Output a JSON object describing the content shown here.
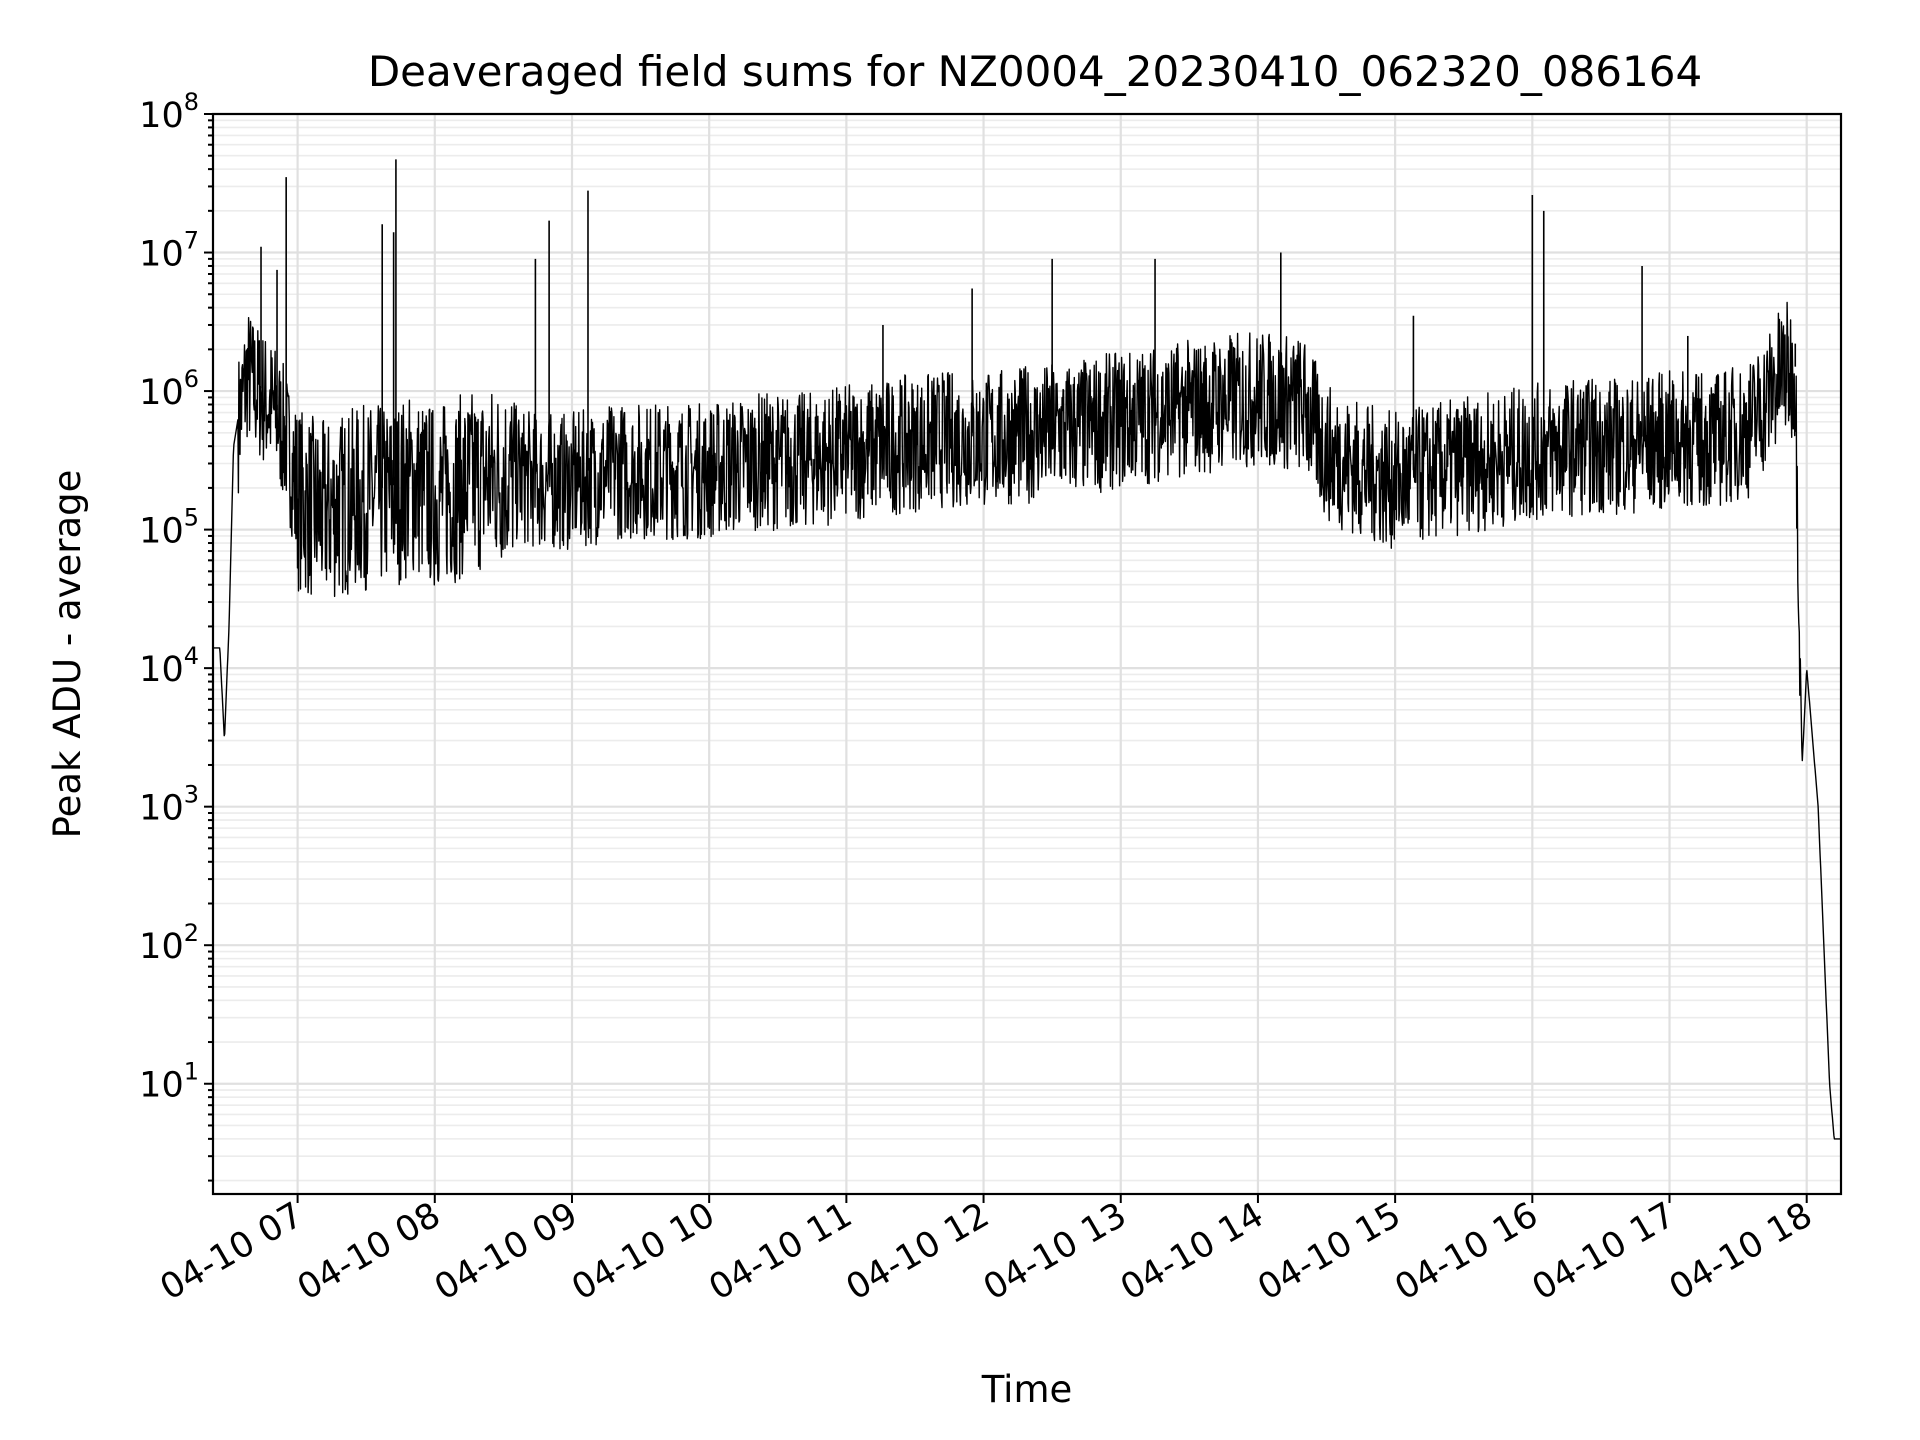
{
  "chart_data": {
    "type": "line",
    "title": "Deaveraged field sums for NZ0004_20230410_062320_086164",
    "xlabel": "Time",
    "ylabel": "Peak ADU - average",
    "yscale": "log",
    "ylim": [
      1.6,
      100000000
    ],
    "xlim": [
      "04-10 06:23",
      "04-10 18:15"
    ],
    "grid": true,
    "line_color": "#000000",
    "x_ticks": [
      "04-10 07",
      "04-10 08",
      "04-10 09",
      "04-10 10",
      "04-10 11",
      "04-10 12",
      "04-10 13",
      "04-10 14",
      "04-10 15",
      "04-10 16",
      "04-10 17",
      "04-10 18"
    ],
    "y_ticks": [
      {
        "base": "10",
        "exp": "1"
      },
      {
        "base": "10",
        "exp": "2"
      },
      {
        "base": "10",
        "exp": "3"
      },
      {
        "base": "10",
        "exp": "4"
      },
      {
        "base": "10",
        "exp": "5"
      },
      {
        "base": "10",
        "exp": "6"
      },
      {
        "base": "10",
        "exp": "7"
      },
      {
        "base": "10",
        "exp": "8"
      }
    ],
    "series": [
      {
        "x": [
          "04-10 06:23",
          "04-10 06:26",
          "04-10 06:28",
          "04-10 06:30",
          "04-10 06:32",
          "04-10 06:35",
          "04-10 06:38",
          "04-10 06:41",
          "04-10 06:45",
          "04-10 06:50",
          "04-10 06:55",
          "04-10 07:00",
          "04-10 07:10",
          "04-10 07:20",
          "04-10 07:30",
          "04-10 07:40",
          "04-10 07:50",
          "04-10 08:00",
          "04-10 08:15",
          "04-10 08:30",
          "04-10 08:45",
          "04-10 09:00",
          "04-10 09:20",
          "04-10 09:40",
          "04-10 10:00",
          "04-10 10:20",
          "04-10 10:40",
          "04-10 11:00",
          "04-10 11:20",
          "04-10 11:40",
          "04-10 12:00",
          "04-10 12:20",
          "04-10 12:40",
          "04-10 13:00",
          "04-10 13:20",
          "04-10 13:40",
          "04-10 14:00",
          "04-10 14:20",
          "04-10 14:30",
          "04-10 14:45",
          "04-10 15:00",
          "04-10 15:20",
          "04-10 15:40",
          "04-10 16:00",
          "04-10 16:20",
          "04-10 16:40",
          "04-10 17:00",
          "04-10 17:20",
          "04-10 17:35",
          "04-10 17:50",
          "04-10 17:55",
          "04-10 17:58",
          "04-10 18:00",
          "04-10 18:05",
          "04-10 18:10",
          "04-10 18:12",
          "04-10 18:13",
          "04-10 18:15"
        ],
        "y": [
          14000,
          14000,
          3000,
          20000,
          400000,
          800000,
          1500000,
          1200000,
          1000000,
          800000,
          500000,
          200000,
          150000,
          180000,
          200000,
          200000,
          250000,
          200000,
          250000,
          300000,
          250000,
          250000,
          300000,
          300000,
          300000,
          350000,
          350000,
          400000,
          450000,
          500000,
          500000,
          550000,
          600000,
          700000,
          800000,
          900000,
          1000000,
          900000,
          400000,
          300000,
          250000,
          300000,
          350000,
          400000,
          450000,
          450000,
          500000,
          500000,
          600000,
          1600000,
          1500000,
          2000,
          10000,
          1000,
          10,
          4,
          4,
          4
        ]
      }
    ],
    "spikes": [
      {
        "x": "04-10 06:44",
        "y": 11000000
      },
      {
        "x": "04-10 06:51",
        "y": 7500000
      },
      {
        "x": "04-10 06:55",
        "y": 35000000
      },
      {
        "x": "04-10 07:37",
        "y": 16000000
      },
      {
        "x": "04-10 07:43",
        "y": 47000000
      },
      {
        "x": "04-10 07:42",
        "y": 14000000
      },
      {
        "x": "04-10 08:44",
        "y": 9000000
      },
      {
        "x": "04-10 08:50",
        "y": 17000000
      },
      {
        "x": "04-10 09:07",
        "y": 28000000
      },
      {
        "x": "04-10 11:16",
        "y": 3000000
      },
      {
        "x": "04-10 11:55",
        "y": 5500000
      },
      {
        "x": "04-10 12:30",
        "y": 9000000
      },
      {
        "x": "04-10 13:15",
        "y": 9000000
      },
      {
        "x": "04-10 14:10",
        "y": 10000000
      },
      {
        "x": "04-10 15:08",
        "y": 3500000
      },
      {
        "x": "04-10 16:00",
        "y": 26000000
      },
      {
        "x": "04-10 16:05",
        "y": 20000000
      },
      {
        "x": "04-10 16:48",
        "y": 8000000
      },
      {
        "x": "04-10 17:08",
        "y": 2500000
      },
      {
        "x": "04-10 17:55",
        "y": 2200000
      }
    ]
  }
}
